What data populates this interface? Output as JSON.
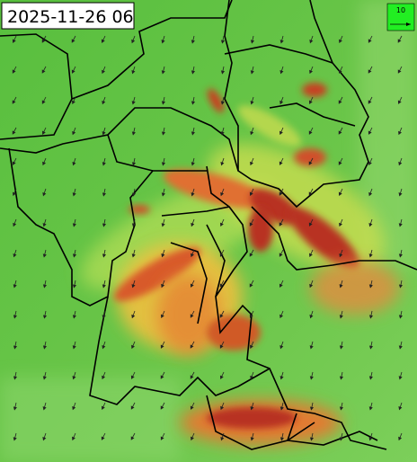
{
  "timestamp": "2025-11-26 06",
  "wind_reference": {
    "label": "10"
  }
}
